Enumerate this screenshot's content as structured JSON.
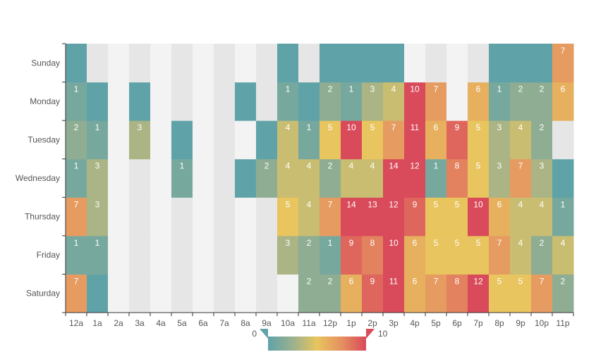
{
  "chart_data": {
    "type": "heatmap",
    "x_categories": [
      "12a",
      "1a",
      "2a",
      "3a",
      "4a",
      "5a",
      "6a",
      "7a",
      "8a",
      "9a",
      "10a",
      "11a",
      "12p",
      "1p",
      "2p",
      "3p",
      "4p",
      "5p",
      "6p",
      "7p",
      "8p",
      "9p",
      "10p",
      "11p"
    ],
    "y_categories": [
      "Saturday",
      "Friday",
      "Thursday",
      "Wednesday",
      "Tuesday",
      "Monday",
      "Sunday"
    ],
    "colors": {
      "gradient": [
        "#5fa3a9",
        "#9ab08e",
        "#e8c55e",
        "#e59060",
        "#d94a5a"
      ],
      "empty_light": "#f3f3f3",
      "empty_dark": "#e6e6e6",
      "axis": "#333333",
      "label": "#ffffff"
    },
    "values": [
      [
        7,
        0,
        null,
        null,
        null,
        null,
        null,
        null,
        null,
        null,
        null,
        2,
        2,
        6,
        9,
        11,
        6,
        7,
        8,
        12,
        5,
        5,
        7,
        2
      ],
      [
        1,
        1,
        null,
        null,
        null,
        null,
        null,
        null,
        null,
        null,
        3,
        2,
        1,
        9,
        8,
        10,
        6,
        5,
        5,
        5,
        7,
        4,
        2,
        4
      ],
      [
        7,
        3,
        null,
        null,
        null,
        null,
        null,
        null,
        null,
        null,
        5,
        4,
        7,
        14,
        13,
        12,
        9,
        5,
        5,
        10,
        6,
        4,
        4,
        1
      ],
      [
        1,
        3,
        null,
        null,
        null,
        1,
        null,
        null,
        0,
        2,
        4,
        4,
        2,
        4,
        4,
        14,
        12,
        1,
        8,
        5,
        3,
        7,
        3,
        0
      ],
      [
        2,
        1,
        null,
        3,
        null,
        0,
        null,
        null,
        null,
        0,
        4,
        1,
        5,
        10,
        5,
        7,
        11,
        6,
        9,
        5,
        3,
        4,
        2,
        null
      ],
      [
        1,
        0,
        null,
        0,
        null,
        null,
        null,
        null,
        0,
        null,
        1,
        0,
        2,
        1,
        3,
        4,
        10,
        7,
        null,
        6,
        1,
        2,
        2,
        6
      ],
      [
        0,
        null,
        null,
        null,
        null,
        null,
        null,
        null,
        null,
        null,
        0,
        null,
        0,
        0,
        0,
        0,
        null,
        null,
        null,
        null,
        0,
        0,
        0,
        7
      ]
    ],
    "visual_map": {
      "min": 0,
      "max": 10,
      "min_label": "0",
      "max_label": "10",
      "orient": "horizontal",
      "position": "bottom-center"
    }
  }
}
